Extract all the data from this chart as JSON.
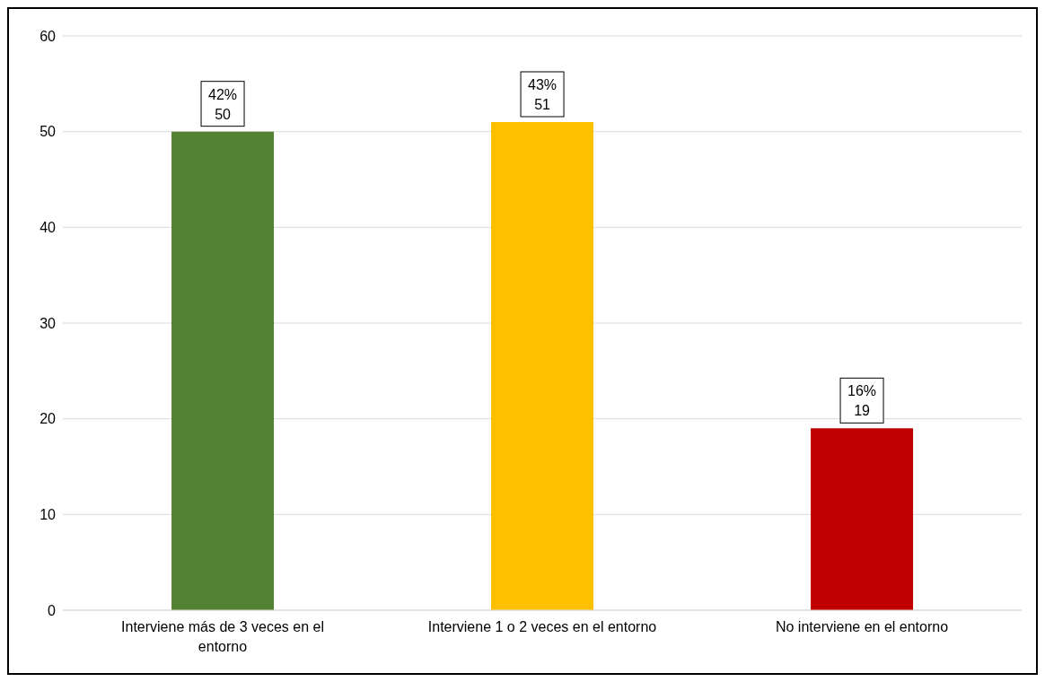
{
  "chart_data": {
    "type": "bar",
    "categories": [
      "Interviene más de 3 veces en el entorno",
      "Interviene 1 o 2 veces en el entorno",
      "No interviene en el entorno"
    ],
    "values": [
      50,
      51,
      19
    ],
    "colors": [
      "#548235",
      "#ffc000",
      "#c00000"
    ],
    "value_labels": [
      "42%\n50",
      "43%\n51",
      "16%\n19"
    ],
    "ylim": [
      0,
      60
    ],
    "yticks": [
      0,
      10,
      20,
      30,
      40,
      50,
      60
    ],
    "grid": "y"
  }
}
